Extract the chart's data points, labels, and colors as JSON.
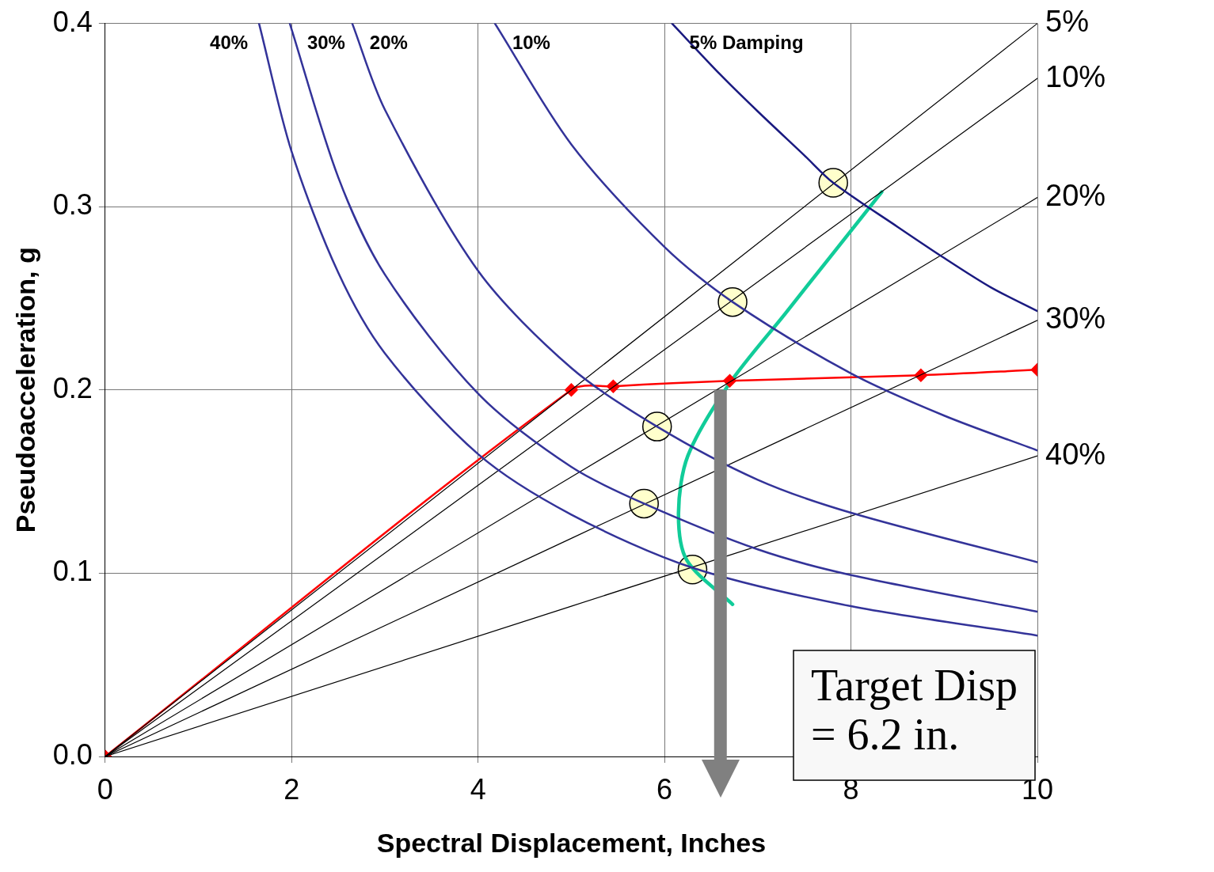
{
  "chart_data": {
    "type": "line",
    "xlabel": "Spectral Displacement, Inches",
    "ylabel": "Pseudoacceleration, g",
    "xlim": [
      0,
      10
    ],
    "ylim": [
      0,
      0.4
    ],
    "xticks": [
      0,
      2,
      4,
      6,
      8,
      10
    ],
    "yticks": [
      {
        "value": 0,
        "label": "0.0"
      },
      {
        "value": 0.1,
        "label": "0.1"
      },
      {
        "value": 0.2,
        "label": "0.2"
      },
      {
        "value": 0.3,
        "label": "0.3"
      },
      {
        "value": 0.4,
        "label": "0.4"
      }
    ],
    "grid": true,
    "legend": false,
    "series": [
      {
        "name": "40%",
        "color": "#333399",
        "x": [
          1.65,
          2,
          2.5,
          3,
          4,
          5,
          6.3,
          8,
          10
        ],
        "values": [
          0.4,
          0.33,
          0.264,
          0.22,
          0.165,
          0.132,
          0.103,
          0.082,
          0.066
        ]
      },
      {
        "name": "30%",
        "color": "#333399",
        "x": [
          1.98,
          2.5,
          3,
          4,
          5,
          5.78,
          7,
          8,
          10
        ],
        "values": [
          0.4,
          0.316,
          0.263,
          0.198,
          0.158,
          0.138,
          0.113,
          0.099,
          0.079
        ]
      },
      {
        "name": "20%",
        "color": "#333399",
        "x": [
          2.65,
          3,
          4,
          5,
          5.92,
          7,
          8,
          10
        ],
        "values": [
          0.4,
          0.353,
          0.265,
          0.212,
          0.18,
          0.151,
          0.133,
          0.106
        ]
      },
      {
        "name": "10%",
        "color": "#333399",
        "x": [
          4.18,
          5,
          6,
          6.73,
          8,
          9,
          10
        ],
        "values": [
          0.4,
          0.334,
          0.278,
          0.248,
          0.209,
          0.186,
          0.167
        ]
      },
      {
        "name": "5% Damping",
        "color": "#1a1a80",
        "x": [
          6.08,
          6.6,
          7,
          7.5,
          7.81,
          8.5,
          9,
          9.5,
          10
        ],
        "values": [
          0.4,
          0.372,
          0.352,
          0.328,
          0.313,
          0.289,
          0.272,
          0.256,
          0.243
        ]
      },
      {
        "name": "5%",
        "color": "#000000",
        "x": [
          0,
          10
        ],
        "values": [
          0,
          0.4
        ]
      },
      {
        "name": "10%",
        "color": "#000000",
        "x": [
          0,
          10
        ],
        "values": [
          0,
          0.37
        ]
      },
      {
        "name": "20%",
        "color": "#000000",
        "x": [
          0,
          10
        ],
        "values": [
          0,
          0.305
        ]
      },
      {
        "name": "30%",
        "color": "#000000",
        "x": [
          0,
          10
        ],
        "values": [
          0,
          0.238
        ]
      },
      {
        "name": "40%",
        "color": "#000000",
        "x": [
          0,
          10
        ],
        "values": [
          0,
          0.164
        ]
      },
      {
        "color": "#ff0000",
        "marker": "diamond",
        "x": [
          0,
          5,
          5.45,
          6.7,
          8.75,
          10
        ],
        "values": [
          0,
          0.2,
          0.202,
          0.205,
          0.208,
          0.211
        ]
      },
      {
        "color": "#11cc99",
        "x": [
          8.33,
          7.3,
          6.69,
          6.25,
          6.15,
          6.24,
          6.73
        ],
        "values": [
          0.308,
          0.242,
          0.203,
          0.164,
          0.133,
          0.107,
          0.083
        ]
      },
      {
        "type": "scatter",
        "color": "#ffffcc",
        "marker": "circle",
        "x": [
          7.81,
          6.73,
          5.92,
          5.78,
          6.3
        ],
        "values": [
          0.313,
          0.248,
          0.18,
          0.138,
          0.102
        ]
      }
    ],
    "annotations": [
      "Target Disp = 6.2 in."
    ],
    "ref_lines": [
      {
        "axis": "x",
        "value": 6.6,
        "color": "#808080"
      }
    ]
  }
}
